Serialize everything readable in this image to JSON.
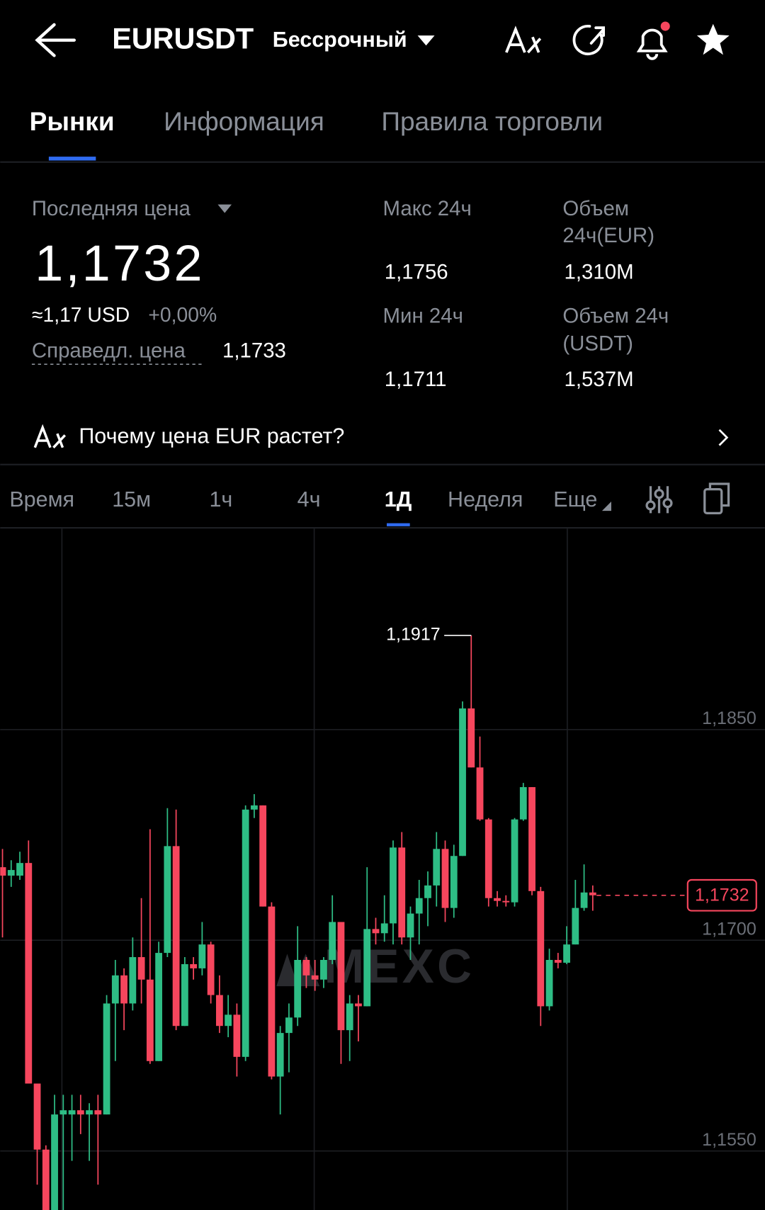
{
  "header": {
    "title": "EURUSDT",
    "subtitle": "Бессрочный"
  },
  "tabs": {
    "items": [
      "Рынки",
      "Информация",
      "Правила торговли"
    ],
    "active": 0
  },
  "stats": {
    "last_price_label": "Последняя цена",
    "last_price": "1,1732",
    "approx": "≈1,17 USD",
    "change": "+0,00%",
    "fair_label": "Справедл. цена",
    "fair_value": "1,1733",
    "high_label": "Макс 24ч",
    "high": "1,1756",
    "low_label": "Мин 24ч",
    "low": "1,1711",
    "vol_eur_label": [
      "Объем",
      "24ч(EUR)"
    ],
    "vol_eur": "1,310M",
    "vol_usdt_label": [
      "Объем 24ч",
      "(USDT)"
    ],
    "vol_usdt": "1,537M"
  },
  "banner": {
    "text": "Почему цена EUR растет?"
  },
  "timeframes": {
    "items": [
      "Время",
      "15м",
      "1ч",
      "4ч",
      "1Д",
      "Неделя",
      "Еще"
    ],
    "active": 4
  },
  "watermark": "MEXC",
  "chart_data": {
    "type": "candlestick",
    "open": [
      1.1752,
      1.1746,
      1.1746,
      1.1755,
      1.1598,
      1.1551,
      1.1508,
      1.1576,
      1.1576,
      1.1579,
      1.1576,
      1.1579,
      1.1576,
      1.1655,
      1.1675,
      1.1655,
      1.1688,
      1.1672,
      1.1614,
      1.1691,
      1.1767,
      1.1639,
      1.1683,
      1.168,
      1.1697,
      1.1661,
      1.1639,
      1.1647,
      1.1617,
      1.1793,
      1.1796,
      1.1724,
      1.1603,
      1.1634,
      1.1645,
      1.1686,
      1.1675,
      1.1672,
      1.1686,
      1.1713,
      1.1636,
      1.1655,
      1.1653,
      1.1708,
      1.1705,
      1.1712,
      1.1766,
      1.1702,
      1.1719,
      1.173,
      1.1739,
      1.1765,
      1.1723,
      1.176,
      1.1865,
      1.1823,
      1.1786,
      1.173,
      1.1728,
      1.1727,
      1.1786,
      1.1809,
      1.1735,
      1.1653,
      1.1686,
      1.1684,
      1.1697,
      1.1723,
      1.1734
    ],
    "high": [
      1.1765,
      1.1757,
      1.1763,
      1.1771,
      1.1598,
      1.1554,
      1.159,
      1.159,
      1.159,
      1.159,
      1.1584,
      1.159,
      1.1661,
      1.1686,
      1.168,
      1.1702,
      1.173,
      1.1779,
      1.1699,
      1.1794,
      1.1793,
      1.1688,
      1.1688,
      1.1713,
      1.1699,
      1.1675,
      1.1661,
      1.1655,
      1.1796,
      1.1804,
      1.1796,
      1.1727,
      1.1639,
      1.1655,
      1.171,
      1.1688,
      1.1686,
      1.1688,
      1.1732,
      1.1713,
      1.1661,
      1.1661,
      1.1752,
      1.1716,
      1.1732,
      1.1771,
      1.1777,
      1.1724,
      1.1743,
      1.1749,
      1.1777,
      1.1771,
      1.1768,
      1.187,
      1.1917,
      1.1845,
      1.1787,
      1.1735,
      1.1732,
      1.1787,
      1.1812,
      1.1809,
      1.1738,
      1.1694,
      1.1691,
      1.171,
      1.1743,
      1.1754,
      1.1739
    ],
    "low": [
      1.1702,
      1.1738,
      1.1743,
      1.1598,
      1.1526,
      1.1502,
      1.1502,
      1.1508,
      1.1543,
      1.1562,
      1.1543,
      1.1526,
      1.1576,
      1.1614,
      1.1636,
      1.165,
      1.1655,
      1.1612,
      1.1614,
      1.1688,
      1.1636,
      1.1639,
      1.1672,
      1.1675,
      1.1655,
      1.1634,
      1.1631,
      1.1603,
      1.1614,
      1.1787,
      1.1724,
      1.1601,
      1.1576,
      1.1606,
      1.1639,
      1.1666,
      1.1664,
      1.1666,
      1.1683,
      1.1612,
      1.1614,
      1.1628,
      1.1653,
      1.1697,
      1.1699,
      1.1697,
      1.1697,
      1.1686,
      1.1697,
      1.171,
      1.1724,
      1.1713,
      1.1716,
      1.176,
      1.1823,
      1.1785,
      1.1724,
      1.1724,
      1.1724,
      1.1724,
      1.1785,
      1.1732,
      1.1639,
      1.165,
      1.168,
      1.1683,
      1.1697,
      1.1721,
      1.1721
    ],
    "close": [
      1.1746,
      1.175,
      1.1755,
      1.1598,
      1.1551,
      1.1508,
      1.1576,
      1.1579,
      1.1579,
      1.1576,
      1.1579,
      1.1576,
      1.1655,
      1.1675,
      1.1655,
      1.1688,
      1.1672,
      1.1614,
      1.1691,
      1.1767,
      1.1639,
      1.1683,
      1.168,
      1.1697,
      1.1661,
      1.1639,
      1.1647,
      1.1617,
      1.1793,
      1.1796,
      1.1724,
      1.1603,
      1.1634,
      1.1645,
      1.1686,
      1.1675,
      1.1672,
      1.1686,
      1.1713,
      1.1636,
      1.1655,
      1.1653,
      1.1708,
      1.1705,
      1.1712,
      1.1766,
      1.1702,
      1.1719,
      1.173,
      1.1739,
      1.1765,
      1.1723,
      1.176,
      1.1865,
      1.1823,
      1.1786,
      1.173,
      1.1728,
      1.1727,
      1.1786,
      1.1809,
      1.1735,
      1.1653,
      1.1686,
      1.1684,
      1.1697,
      1.1723,
      1.1734,
      1.1732
    ],
    "up_color": "#2ebd85",
    "down_color": "#f6465d",
    "ylim": [
      1.1508,
      1.1993
    ],
    "yticks": [
      {
        "value": 1.155,
        "label": "1,1550"
      },
      {
        "value": 1.17,
        "label": "1,1700"
      },
      {
        "value": 1.185,
        "label": "1,1850"
      }
    ],
    "grid": true,
    "high_annotation": {
      "value": 1.1917,
      "label": "1,1917"
    },
    "last_price": {
      "value": 1.1732,
      "label": "1,1732"
    }
  }
}
